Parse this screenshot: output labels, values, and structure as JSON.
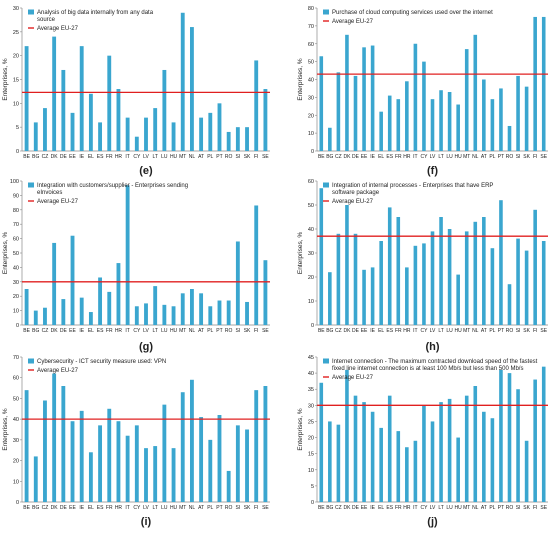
{
  "chart_data": [
    {
      "type": "bar",
      "panel_label": "(e)",
      "ylabel": "Enterprises, %",
      "ylim": [
        0,
        30
      ],
      "yticks": [
        0,
        5,
        10,
        15,
        20,
        25,
        30
      ],
      "categories": [
        "BE",
        "BG",
        "CZ",
        "DK",
        "DE",
        "EE",
        "IE",
        "EL",
        "ES",
        "FR",
        "HR",
        "IT",
        "CY",
        "LV",
        "LT",
        "LU",
        "HU",
        "MT",
        "NL",
        "AT",
        "PL",
        "PT",
        "RO",
        "SI",
        "SK",
        "FI",
        "SE"
      ],
      "series": [
        {
          "name": "Analysis of big data internally from any data source",
          "values": [
            22,
            6,
            9,
            24,
            17,
            8,
            22,
            12,
            6,
            20,
            13,
            7,
            3,
            7,
            9,
            17,
            6,
            29,
            26,
            7,
            8,
            10,
            4,
            5,
            5,
            19,
            13
          ]
        }
      ],
      "average": {
        "name": "Average EU-27",
        "value": 12.3
      },
      "legend": "top-left",
      "grid": false
    },
    {
      "type": "bar",
      "panel_label": "(f)",
      "ylabel": "Enterprises, %",
      "ylim": [
        0,
        80
      ],
      "yticks": [
        0,
        10,
        20,
        30,
        40,
        50,
        60,
        70,
        80
      ],
      "categories": [
        "BE",
        "BG",
        "CZ",
        "DK",
        "DE",
        "EE",
        "IE",
        "EL",
        "ES",
        "FR",
        "HR",
        "IT",
        "CY",
        "LV",
        "LT",
        "LU",
        "HU",
        "MT",
        "NL",
        "AT",
        "PL",
        "PT",
        "RO",
        "SI",
        "SK",
        "FI",
        "SE"
      ],
      "series": [
        {
          "name": "Purchase of cloud computing services used over the internet",
          "values": [
            53,
            13,
            44,
            65,
            42,
            58,
            59,
            22,
            31,
            29,
            39,
            60,
            50,
            29,
            34,
            33,
            26,
            57,
            65,
            40,
            29,
            35,
            14,
            42,
            36,
            75,
            75
          ]
        }
      ],
      "average": {
        "name": "Average EU-27",
        "value": 43
      },
      "legend": "top-left",
      "grid": false
    },
    {
      "type": "bar",
      "panel_label": "(g)",
      "ylabel": "Enterprises, %",
      "ylim": [
        0,
        100
      ],
      "yticks": [
        0,
        10,
        20,
        30,
        40,
        50,
        60,
        70,
        80,
        90,
        100
      ],
      "categories": [
        "BE",
        "BG",
        "CZ",
        "DK",
        "DE",
        "EE",
        "IE",
        "EL",
        "ES",
        "FR",
        "HR",
        "IT",
        "CY",
        "LV",
        "LT",
        "LU",
        "HU",
        "MT",
        "NL",
        "AT",
        "PL",
        "PT",
        "RO",
        "SI",
        "SK",
        "FI",
        "SE"
      ],
      "series": [
        {
          "name": "Integration with customers/supplier - Enterprises sending eInvoices",
          "values": [
            25,
            10,
            12,
            57,
            18,
            62,
            19,
            9,
            33,
            23,
            43,
            97,
            13,
            15,
            27,
            14,
            13,
            22,
            25,
            22,
            13,
            17,
            17,
            58,
            16,
            83,
            45
          ]
        }
      ],
      "average": {
        "name": "Average EU-27",
        "value": 30
      },
      "legend": "top-left",
      "grid": false
    },
    {
      "type": "bar",
      "panel_label": "(h)",
      "ylabel": "Enterprises, %",
      "ylim": [
        0,
        60
      ],
      "yticks": [
        0,
        10,
        20,
        30,
        40,
        50,
        60
      ],
      "categories": [
        "BE",
        "BG",
        "CZ",
        "DK",
        "DE",
        "EE",
        "IE",
        "EL",
        "ES",
        "FR",
        "HR",
        "IT",
        "CY",
        "LV",
        "LT",
        "LU",
        "HU",
        "MT",
        "NL",
        "AT",
        "PL",
        "PT",
        "RO",
        "SI",
        "SK",
        "FI",
        "SE"
      ],
      "series": [
        {
          "name": "Integration of internal processes - Enterprises that have ERP software package",
          "values": [
            57,
            22,
            38,
            50,
            38,
            23,
            24,
            35,
            49,
            45,
            24,
            33,
            34,
            39,
            45,
            40,
            21,
            39,
            43,
            45,
            32,
            52,
            17,
            36,
            31,
            48,
            35
          ]
        }
      ],
      "average": {
        "name": "Average EU-27",
        "value": 37
      },
      "legend": "top-left",
      "grid": false
    },
    {
      "type": "bar",
      "panel_label": "(i)",
      "ylabel": "Enterprises, %",
      "ylim": [
        0,
        70
      ],
      "yticks": [
        0,
        10,
        20,
        30,
        40,
        50,
        60,
        70
      ],
      "categories": [
        "BE",
        "BG",
        "CZ",
        "DK",
        "DE",
        "EE",
        "IE",
        "EL",
        "ES",
        "FR",
        "HR",
        "IT",
        "CY",
        "LV",
        "LT",
        "LU",
        "HU",
        "MT",
        "NL",
        "AT",
        "PL",
        "PT",
        "RO",
        "SI",
        "SK",
        "FI",
        "SE"
      ],
      "series": [
        {
          "name": "Cybersecurity - ICT security measure used: VPN",
          "values": [
            54,
            22,
            49,
            62,
            56,
            39,
            44,
            24,
            37,
            45,
            39,
            32,
            37,
            26,
            27,
            47,
            26,
            53,
            59,
            41,
            30,
            42,
            15,
            37,
            35,
            54,
            56
          ]
        }
      ],
      "average": {
        "name": "Average EU-27",
        "value": 40
      },
      "legend": "top-left",
      "grid": false
    },
    {
      "type": "bar",
      "panel_label": "(j)",
      "ylabel": "Enterprises, %",
      "ylim": [
        0,
        45
      ],
      "yticks": [
        0,
        5,
        10,
        15,
        20,
        25,
        30,
        35,
        40,
        45
      ],
      "categories": [
        "BE",
        "BG",
        "CZ",
        "DK",
        "DE",
        "EE",
        "IE",
        "EL",
        "ES",
        "FR",
        "HR",
        "IT",
        "CY",
        "LV",
        "LT",
        "LU",
        "HU",
        "MT",
        "NL",
        "AT",
        "PL",
        "PT",
        "RO",
        "SI",
        "SK",
        "FI",
        "SE"
      ],
      "series": [
        {
          "name": "Internet connection - The maximum contracted download speed of the fastest fixed line internet connection is at least 100 Mb/s but less than 500 Mb/s",
          "values": [
            37,
            25,
            24,
            41,
            33,
            31,
            28,
            23,
            33,
            22,
            17,
            19,
            30,
            25,
            31,
            32,
            20,
            33,
            36,
            28,
            26,
            41,
            40,
            35,
            19,
            38,
            42
          ]
        }
      ],
      "average": {
        "name": "Average EU-27",
        "value": 30
      },
      "legend": "top-left",
      "grid": false
    }
  ],
  "colors": {
    "bar": "#3aa6cf",
    "average_line": "#e02020",
    "axis": "#888888",
    "text": "#222222"
  }
}
